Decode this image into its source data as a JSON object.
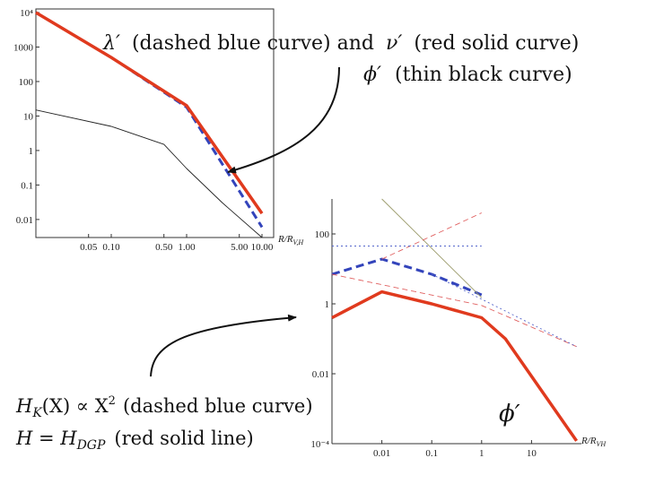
{
  "annotations": {
    "line1_sym": "λ′",
    "line1_text": "(dashed blue curve)  and",
    "line1_sym2": "ν′",
    "line1_text2": "(red solid curve)",
    "line2_sym": "ϕ′",
    "line2_text": "(thin black curve)",
    "hk_sym": "H",
    "hk_sub": "K",
    "hk_text": "(X) ∝ X",
    "hk_sup": "2",
    "hk_tail": "(dashed blue curve)",
    "h_sym": "H = H",
    "h_sub": "DGP",
    "h_tail": "(red solid line)",
    "phi_label": "ϕ′"
  },
  "chart_data": [
    {
      "type": "line",
      "xscale": "log",
      "yscale": "log",
      "xlabel": "R/R_{V,H}",
      "xlim": [
        0.01,
        10.0
      ],
      "ylim": [
        0.003,
        10000
      ],
      "xticks": [
        "0.05",
        "0.10",
        "0.50",
        "1.00",
        "5.00",
        "10.00"
      ],
      "yticks": [
        "10⁴",
        "1000",
        "100",
        "10",
        "1",
        "0.1",
        "0.01"
      ],
      "series": [
        {
          "style": "dashed",
          "color": "#3344bb",
          "x": [
            0.01,
            0.1,
            1.0,
            10.0
          ],
          "y": [
            10000,
            500,
            18,
            0.006
          ]
        },
        {
          "style": "solid",
          "color": "#e03a1e",
          "x": [
            0.01,
            0.1,
            1.0,
            10.0
          ],
          "y": [
            10000,
            500,
            20,
            0.015
          ]
        },
        {
          "style": "thin",
          "color": "#222222",
          "x": [
            0.01,
            0.1,
            0.5,
            1.0,
            3.0,
            10.0
          ],
          "y": [
            15,
            5,
            1.5,
            0.3,
            0.03,
            0.003
          ]
        }
      ]
    },
    {
      "type": "line",
      "xscale": "log",
      "yscale": "log",
      "xlabel": "R/R_{V,H}",
      "xlim": [
        0.001,
        100
      ],
      "ylim": [
        0.0001,
        1000
      ],
      "xticks": [
        "0.01",
        "0.1",
        "1",
        "10"
      ],
      "yticks": [
        "100",
        "1",
        "0.01",
        "10⁻⁴"
      ],
      "series": [
        {
          "style": "dashed",
          "color": "#3344bb",
          "x": [
            0.001,
            0.01,
            0.1,
            1.0
          ],
          "y": [
            7,
            19,
            7,
            1.8
          ]
        },
        {
          "style": "solid",
          "color": "#e03a1e",
          "x": [
            0.001,
            0.01,
            0.1,
            1.0,
            3.0,
            80.0
          ],
          "y": [
            0.4,
            2.2,
            1.0,
            0.4,
            0.1,
            0.00012
          ]
        },
        {
          "style": "thin",
          "color": "#9a9a6a",
          "x": [
            0.01,
            1.0
          ],
          "y": [
            1000,
            1.5
          ]
        },
        {
          "style": "thin-dashed",
          "color": "#e06060",
          "x": [
            0.01,
            1.0
          ],
          "y": [
            19,
            400
          ]
        },
        {
          "style": "thin-dashed",
          "color": "#e06060",
          "x": [
            0.001,
            1.0,
            80.0
          ],
          "y": [
            7,
            0.9,
            0.06
          ]
        },
        {
          "style": "thin-dotted",
          "color": "#5566cc",
          "x": [
            0.001,
            1.0
          ],
          "y": [
            45,
            45
          ]
        },
        {
          "style": "thin-dotted",
          "color": "#5566cc",
          "x": [
            0.1,
            80.0
          ],
          "y": [
            7,
            0.06
          ]
        }
      ]
    }
  ]
}
